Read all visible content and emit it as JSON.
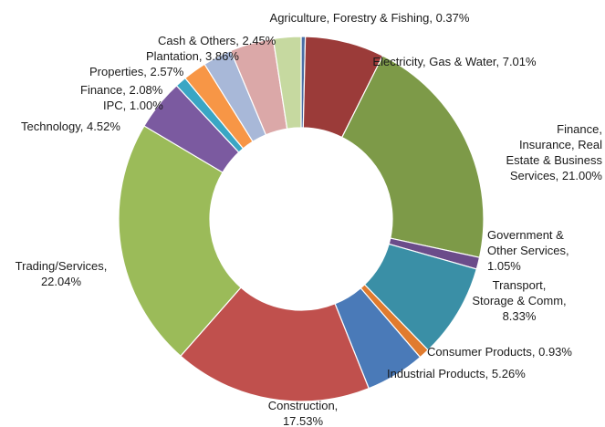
{
  "chart_data": {
    "type": "pie",
    "donut": true,
    "legend": "none",
    "slices": [
      {
        "label": "Agriculture, Forestry & Fishing",
        "value": 0.37,
        "display": "Agriculture, Forestry & Fishing, 0.37%",
        "color": "#4a6fa5"
      },
      {
        "label": "Electricity, Gas & Water",
        "value": 7.01,
        "display": "Electricity, Gas & Water, 7.01%",
        "color": "#9b3b39"
      },
      {
        "label": "Finance, Insurance, Real Estate & Business Services",
        "value": 21.0,
        "display": "Finance,\nInsurance, Real\nEstate & Business\nServices, 21.00%",
        "color": "#7d9a48"
      },
      {
        "label": "Government & Other Services",
        "value": 1.05,
        "display": "Government &\nOther Services,\n1.05%",
        "color": "#6b4c8a"
      },
      {
        "label": "Transport, Storage & Comm",
        "value": 8.33,
        "display": "Transport,\nStorage & Comm,\n8.33%",
        "color": "#3a8fa6"
      },
      {
        "label": "Consumer Products",
        "value": 0.93,
        "display": "Consumer Products, 0.93%",
        "color": "#e07b2e"
      },
      {
        "label": "Industrial Products",
        "value": 5.26,
        "display": "Industrial Products, 5.26%",
        "color": "#4a7ab8"
      },
      {
        "label": "Construction",
        "value": 17.53,
        "display": "Construction,\n17.53%",
        "color": "#c0504d"
      },
      {
        "label": "Trading/Services",
        "value": 22.04,
        "display": "Trading/Services,\n22.04%",
        "color": "#9bbb59"
      },
      {
        "label": "Technology",
        "value": 4.52,
        "display": "Technology, 4.52%",
        "color": "#7b5aa0"
      },
      {
        "label": "IPC",
        "value": 1.0,
        "display": "IPC, 1.00%",
        "color": "#3aa6c4"
      },
      {
        "label": "Finance",
        "value": 2.08,
        "display": "Finance, 2.08%",
        "color": "#f79646"
      },
      {
        "label": "Properties",
        "value": 2.57,
        "display": "Properties, 2.57%",
        "color": "#a8b8d8"
      },
      {
        "label": "Plantation",
        "value": 3.86,
        "display": "Plantation, 3.86%",
        "color": "#dba8a8"
      },
      {
        "label": "Cash & Others",
        "value": 2.45,
        "display": "Cash & Others, 2.45%",
        "color": "#c6d9a0"
      }
    ]
  }
}
